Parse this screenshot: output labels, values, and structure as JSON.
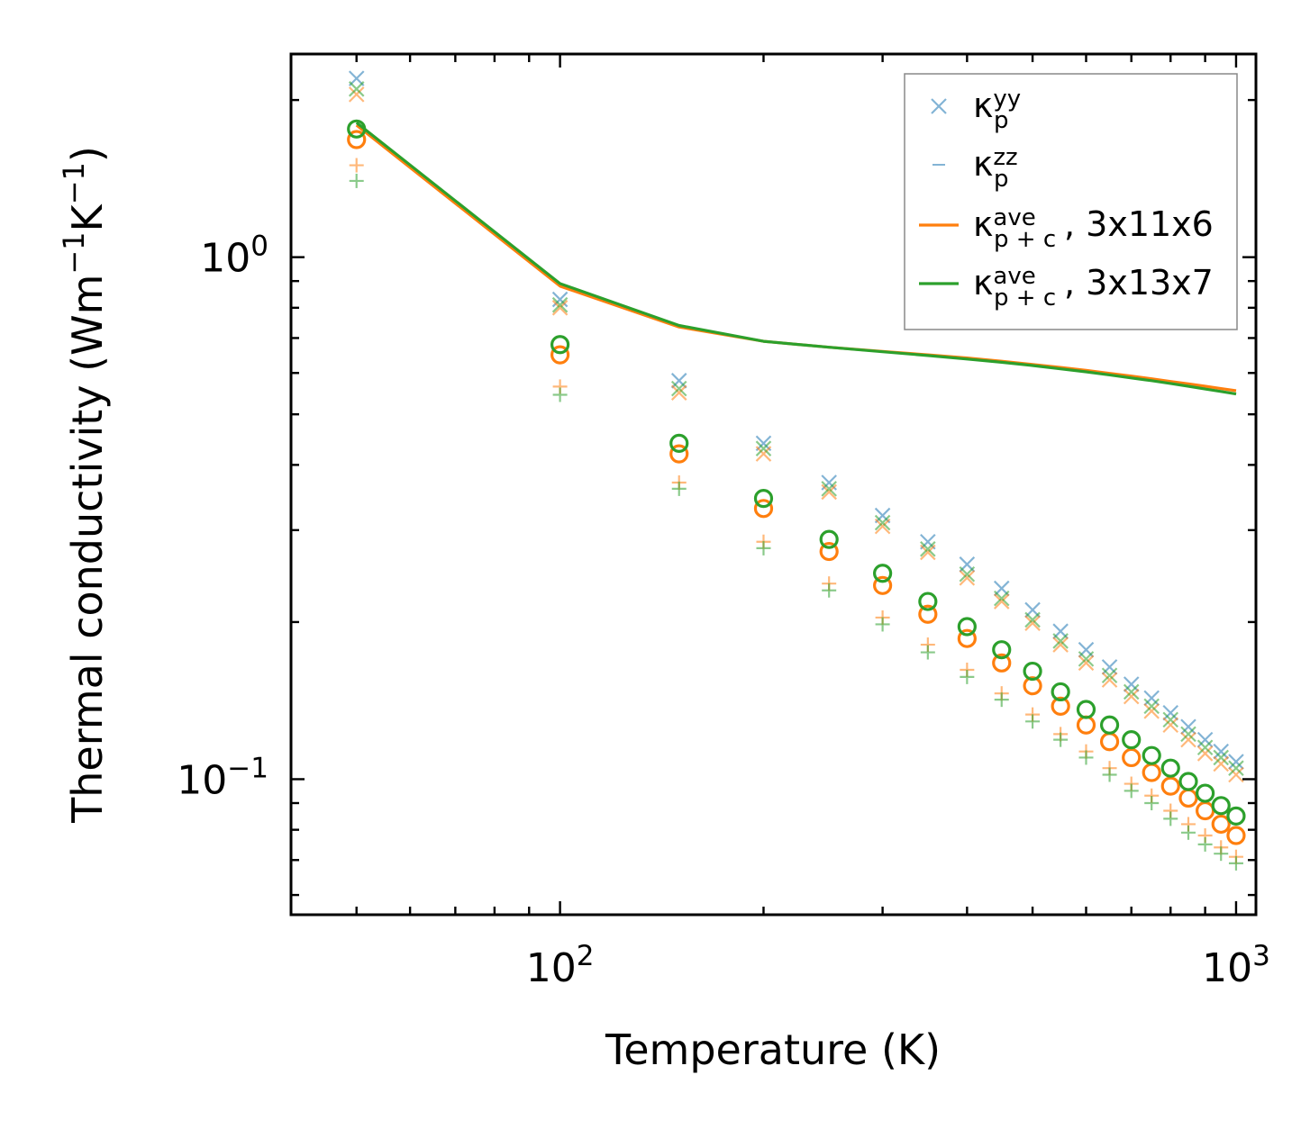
{
  "chart_data": {
    "type": "scatter",
    "xscale": "log",
    "yscale": "log",
    "xlabel": "Temperature (K)",
    "ylabel": {
      "main": "Thermal conductivity (Wm",
      "exp1": "−1",
      "mid": "K",
      "exp2": "−1",
      "close": ")"
    },
    "xlim": [
      40,
      1070
    ],
    "ylim": [
      0.055,
      2.45
    ],
    "x_ticks": [
      {
        "value": 100,
        "base": "10",
        "exp": "2"
      },
      {
        "value": 1000,
        "base": "10",
        "exp": "3"
      }
    ],
    "y_ticks": [
      {
        "value": 1.0,
        "base": "10",
        "exp": "0"
      },
      {
        "value": 0.1,
        "base": "10",
        "exp": "−1"
      }
    ],
    "x": [
      50,
      100,
      150,
      200,
      250,
      300,
      350,
      400,
      450,
      500,
      550,
      600,
      650,
      700,
      750,
      800,
      850,
      900,
      950,
      1000
    ],
    "series": [
      {
        "name": "kp_yy_3x11x6",
        "marker": "x",
        "color": "#1f77b4",
        "alpha": 0.55,
        "values": [
          2.2,
          0.83,
          0.58,
          0.44,
          0.37,
          0.32,
          0.285,
          0.258,
          0.232,
          0.211,
          0.192,
          0.177,
          0.164,
          0.152,
          0.143,
          0.134,
          0.126,
          0.119,
          0.113,
          0.108
        ]
      },
      {
        "name": "kp_yy_3x13x7",
        "marker": "x",
        "color": "#ff7f0e",
        "alpha": 0.55,
        "values": [
          2.05,
          0.8,
          0.55,
          0.42,
          0.355,
          0.305,
          0.272,
          0.243,
          0.219,
          0.199,
          0.181,
          0.167,
          0.155,
          0.144,
          0.135,
          0.127,
          0.119,
          0.112,
          0.107,
          0.102
        ]
      },
      {
        "name": "kp_yy_3x13x7_b",
        "marker": "x",
        "color": "#2ca02c",
        "alpha": 0.55,
        "values": [
          2.1,
          0.81,
          0.56,
          0.43,
          0.36,
          0.31,
          0.276,
          0.247,
          0.222,
          0.202,
          0.184,
          0.17,
          0.158,
          0.147,
          0.138,
          0.13,
          0.122,
          0.115,
          0.11,
          0.105
        ]
      },
      {
        "name": "kp_zz_3x11x6",
        "marker": "+",
        "color": "#ff7f0e",
        "alpha": 0.55,
        "values": [
          1.5,
          0.565,
          0.37,
          0.285,
          0.237,
          0.204,
          0.181,
          0.162,
          0.146,
          0.133,
          0.122,
          0.113,
          0.105,
          0.098,
          0.093,
          0.087,
          0.082,
          0.078,
          0.074,
          0.071
        ]
      },
      {
        "name": "kp_zz_3x13x7",
        "marker": "+",
        "color": "#2ca02c",
        "alpha": 0.55,
        "values": [
          1.4,
          0.545,
          0.36,
          0.277,
          0.23,
          0.198,
          0.175,
          0.157,
          0.142,
          0.129,
          0.119,
          0.11,
          0.102,
          0.095,
          0.09,
          0.084,
          0.079,
          0.075,
          0.072,
          0.069
        ]
      },
      {
        "name": "kpc_points_3x11x6",
        "marker": "o",
        "color": "#ff7f0e",
        "alpha": 1,
        "values": [
          1.68,
          0.65,
          0.42,
          0.33,
          0.273,
          0.235,
          0.207,
          0.186,
          0.167,
          0.151,
          0.138,
          0.127,
          0.118,
          0.11,
          0.103,
          0.097,
          0.092,
          0.087,
          0.082,
          0.078
        ]
      },
      {
        "name": "kpc_points_3x13x7",
        "marker": "o",
        "color": "#2ca02c",
        "alpha": 1,
        "values": [
          1.76,
          0.68,
          0.44,
          0.345,
          0.288,
          0.248,
          0.219,
          0.196,
          0.177,
          0.161,
          0.147,
          0.136,
          0.127,
          0.119,
          0.111,
          0.105,
          0.099,
          0.094,
          0.089,
          0.085
        ]
      }
    ],
    "lines": [
      {
        "name": "kave_pc_3x11x6",
        "color": "#ff7f0e",
        "x": [
          50,
          100,
          150,
          200,
          250,
          300,
          350,
          400,
          450,
          500,
          550,
          600,
          650,
          700,
          750,
          800,
          850,
          900,
          950,
          1000
        ],
        "values": [
          1.79,
          0.88,
          0.735,
          0.69,
          0.672,
          0.66,
          0.65,
          0.641,
          0.632,
          0.623,
          0.615,
          0.607,
          0.599,
          0.592,
          0.585,
          0.578,
          0.572,
          0.566,
          0.56,
          0.555
        ]
      },
      {
        "name": "kave_pc_3x13x7",
        "color": "#2ca02c",
        "x": [
          50,
          100,
          150,
          200,
          250,
          300,
          350,
          400,
          450,
          500,
          550,
          600,
          650,
          700,
          750,
          800,
          850,
          900,
          950,
          1000
        ],
        "values": [
          1.81,
          0.89,
          0.74,
          0.69,
          0.672,
          0.659,
          0.648,
          0.638,
          0.629,
          0.62,
          0.611,
          0.603,
          0.595,
          0.587,
          0.58,
          0.573,
          0.566,
          0.559,
          0.553,
          0.547
        ]
      }
    ],
    "legend": {
      "placement": "top-right",
      "entries": [
        {
          "symbol": "κ",
          "sub": "p",
          "sup": "yy",
          "suffix": "",
          "marker": "x",
          "color": "#1f77b4",
          "alpha": 0.55
        },
        {
          "symbol": "κ",
          "sub": "p",
          "sup": "zz",
          "suffix": "",
          "marker": "dash",
          "color": "#1f77b4",
          "alpha": 0.55
        },
        {
          "symbol": "κ",
          "sub": "p + c",
          "sup": "ave",
          "suffix": ", 3x11x6",
          "marker": "line",
          "color": "#ff7f0e",
          "alpha": 1
        },
        {
          "symbol": "κ",
          "sub": "p + c",
          "sup": "ave",
          "suffix": ", 3x13x7",
          "marker": "line",
          "color": "#2ca02c",
          "alpha": 1
        }
      ]
    }
  }
}
